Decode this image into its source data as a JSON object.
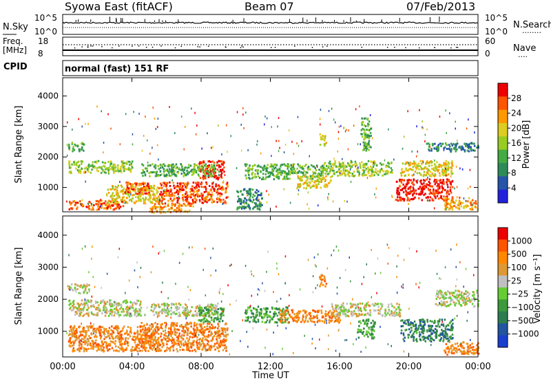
{
  "header": {
    "station": "Syowa East (fitACF)",
    "beam": "Beam 07",
    "date": "07/Feb/2013"
  },
  "panels": {
    "nsky_label": "N.Sky",
    "nsearch_label": "N.Search",
    "nsearch_marker": "........",
    "nsky_ticks": [
      "10^5",
      "10^0"
    ],
    "nsearch_ticks": [
      "10^5",
      "10^0"
    ],
    "freq_label_1": "Freq.",
    "freq_label_2": "[MHz]",
    "freq_ticks": [
      "18",
      "8"
    ],
    "nave_label": "Nave",
    "nave_marker": "....",
    "nave_ticks": [
      "60",
      "0"
    ],
    "cpid_label": "CPID",
    "cpid_text": "normal (fast) 151 RF"
  },
  "colors": {
    "power": [
      "#2222dd",
      "#2655aa",
      "#2e8b57",
      "#44aa44",
      "#99cc22",
      "#ddcc22",
      "#ff9900",
      "#ff5500",
      "#ee0000"
    ],
    "velocity": [
      "#1a3fcf",
      "#2255a0",
      "#2e7d4f",
      "#3c9a3c",
      "#66cc33",
      "#c0c0c0",
      "#dd9933",
      "#ff8800",
      "#ff5500",
      "#ee0000"
    ]
  },
  "chart_data": [
    {
      "type": "heatmap",
      "name": "power",
      "ylabel": "Slant Range [km]",
      "yticks": [
        1000,
        2000,
        3000,
        4000
      ],
      "ylim": [
        200,
        4600
      ],
      "xlim": [
        "00:00",
        "24:00"
      ],
      "colorbar_label": "Power [dB]",
      "colorbar_ticks": [
        "28",
        "24",
        "20",
        "16",
        "12",
        "8",
        "4"
      ],
      "blobs": [
        {
          "t": [
            0.3,
            4.0
          ],
          "r": [
            1500,
            1900
          ],
          "level": 4
        },
        {
          "t": [
            0.3,
            3.5
          ],
          "r": [
            300,
            600
          ],
          "level": 7
        },
        {
          "t": [
            0.3,
            1.2
          ],
          "r": [
            2200,
            2500
          ],
          "level": 3
        },
        {
          "t": [
            2.5,
            5.5
          ],
          "r": [
            500,
            1100
          ],
          "level": 5
        },
        {
          "t": [
            3.5,
            5.0
          ],
          "r": [
            800,
            1200
          ],
          "level": 7
        },
        {
          "t": [
            5.5,
            9.5
          ],
          "r": [
            500,
            1200
          ],
          "level": 7
        },
        {
          "t": [
            7.8,
            9.3
          ],
          "r": [
            1300,
            1900
          ],
          "level": 8
        },
        {
          "t": [
            4.5,
            9.0
          ],
          "r": [
            1400,
            1800
          ],
          "level": 3
        },
        {
          "t": [
            5.0,
            7.5
          ],
          "r": [
            200,
            500
          ],
          "level": 6
        },
        {
          "t": [
            10.5,
            15.0
          ],
          "r": [
            1300,
            1800
          ],
          "level": 3
        },
        {
          "t": [
            10.0,
            11.5
          ],
          "r": [
            300,
            1000
          ],
          "level": 2
        },
        {
          "t": [
            15.0,
            19.0
          ],
          "r": [
            1400,
            1900
          ],
          "level": 4
        },
        {
          "t": [
            13.5,
            15.5
          ],
          "r": [
            1000,
            1400
          ],
          "level": 5
        },
        {
          "t": [
            14.8,
            15.2
          ],
          "r": [
            2400,
            2800
          ],
          "level": 5
        },
        {
          "t": [
            17.2,
            17.8
          ],
          "r": [
            2200,
            3300
          ],
          "level": 3
        },
        {
          "t": [
            19.2,
            22.5
          ],
          "r": [
            600,
            1300
          ],
          "level": 8
        },
        {
          "t": [
            19.5,
            22.5
          ],
          "r": [
            1400,
            1900
          ],
          "level": 5
        },
        {
          "t": [
            21.0,
            24.0
          ],
          "r": [
            2200,
            2500
          ],
          "level": 2
        },
        {
          "t": [
            22.0,
            24.0
          ],
          "r": [
            300,
            700
          ],
          "level": 6
        }
      ]
    },
    {
      "type": "heatmap",
      "name": "velocity",
      "ylabel": "Slant Range [km]",
      "yticks": [
        1000,
        2000,
        3000,
        4000
      ],
      "ylim": [
        200,
        4600
      ],
      "xlim": [
        "00:00",
        "24:00"
      ],
      "xticks": [
        "00:00",
        "04:00",
        "08:00",
        "12:00",
        "16:00",
        "20:00",
        "00:00"
      ],
      "xlabel": "Time UT",
      "colorbar_label": "Velocity [m s⁻¹]",
      "colorbar_ticks": [
        "1000",
        "500",
        "100",
        "25",
        "−25",
        "−100",
        "−500",
        "−1000"
      ],
      "blobs": [
        {
          "t": [
            0.3,
            4.5
          ],
          "r": [
            1500,
            2000
          ],
          "level": 5
        },
        {
          "t": [
            0.3,
            5.5
          ],
          "r": [
            400,
            1200
          ],
          "level": 7
        },
        {
          "t": [
            0.3,
            1.5
          ],
          "r": [
            2200,
            2500
          ],
          "level": 5
        },
        {
          "t": [
            4.5,
            9.5
          ],
          "r": [
            400,
            1300
          ],
          "level": 7
        },
        {
          "t": [
            5.0,
            9.0
          ],
          "r": [
            1500,
            1900
          ],
          "level": 5
        },
        {
          "t": [
            7.8,
            9.3
          ],
          "r": [
            1300,
            1800
          ],
          "level": 3
        },
        {
          "t": [
            10.5,
            13.0
          ],
          "r": [
            1300,
            1800
          ],
          "level": 3
        },
        {
          "t": [
            12.5,
            16.0
          ],
          "r": [
            1300,
            1700
          ],
          "level": 7
        },
        {
          "t": [
            14.8,
            15.2
          ],
          "r": [
            2400,
            2800
          ],
          "level": 7
        },
        {
          "t": [
            15.5,
            19.5
          ],
          "r": [
            1500,
            1900
          ],
          "level": 5
        },
        {
          "t": [
            17.0,
            18.0
          ],
          "r": [
            800,
            1400
          ],
          "level": 3
        },
        {
          "t": [
            19.5,
            22.5
          ],
          "r": [
            700,
            1400
          ],
          "level": 2
        },
        {
          "t": [
            21.5,
            24.0
          ],
          "r": [
            1800,
            2300
          ],
          "level": 5
        },
        {
          "t": [
            22.0,
            24.0
          ],
          "r": [
            300,
            700
          ],
          "level": 7
        }
      ]
    }
  ]
}
